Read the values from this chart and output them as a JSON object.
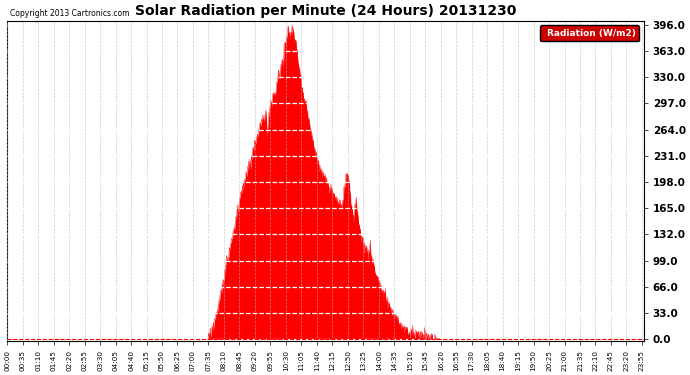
{
  "title": "Solar Radiation per Minute (24 Hours) 20131230",
  "copyright_text": "Copyright 2013 Cartronics.com",
  "legend_label": "Radiation (W/m2)",
  "background_color": "#ffffff",
  "plot_bg_color": "#ffffff",
  "fill_color": "#ff0000",
  "line_color": "#ff0000",
  "zero_line_color": "#ff0000",
  "grid_color_x": "#bbbbbb",
  "grid_color_y": "#ffffff",
  "ytick_values": [
    0.0,
    33.0,
    66.0,
    99.0,
    132.0,
    165.0,
    198.0,
    231.0,
    264.0,
    297.0,
    330.0,
    363.0,
    396.0
  ],
  "ymax": 396.0,
  "ymin": 0.0,
  "tick_interval_minutes": 35,
  "total_minutes": 1440
}
